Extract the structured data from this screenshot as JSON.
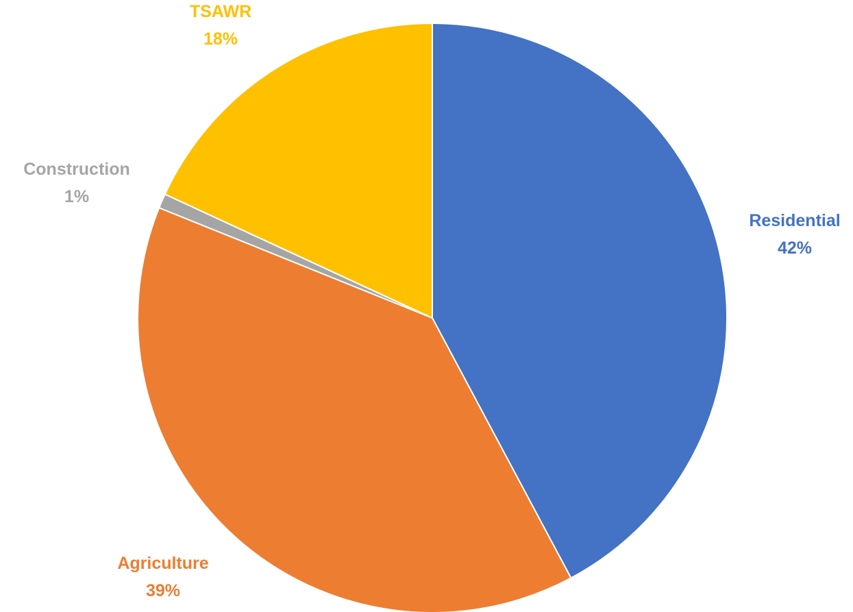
{
  "chart_data": {
    "type": "pie",
    "categories": [
      "Residential",
      "Agriculture",
      "Construction",
      "TSAWR"
    ],
    "values": [
      42.2,
      38.9,
      0.8,
      18.1
    ],
    "data_labels": [
      {
        "category": "Residential",
        "percent": "42%"
      },
      {
        "category": "Agriculture",
        "percent": "39%"
      },
      {
        "category": "Construction",
        "percent": "1%"
      },
      {
        "category": "TSAWR",
        "percent": "18%"
      }
    ],
    "colors": [
      "#4472C4",
      "#ED7D31",
      "#A5A5A5",
      "#FFC000"
    ],
    "start_angle": "12 o'clock",
    "direction": "clockwise",
    "legend": "none"
  }
}
